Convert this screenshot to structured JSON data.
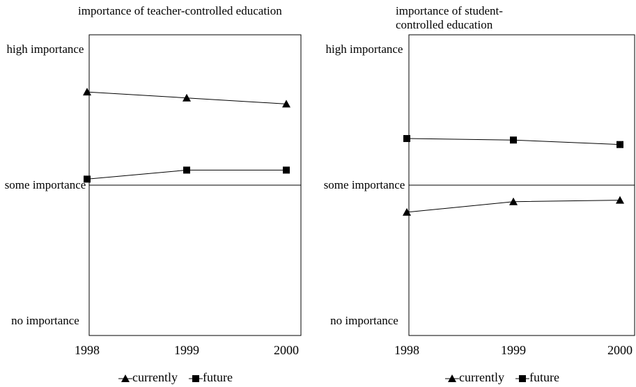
{
  "chart_data": [
    {
      "type": "line",
      "title": "importance of teacher-controlled education",
      "x": [
        "1998",
        "1999",
        "2000"
      ],
      "ylim": [
        0,
        2
      ],
      "yticks": [
        {
          "value": 0,
          "label": "no importance"
        },
        {
          "value": 1,
          "label": "some importance"
        },
        {
          "value": 2,
          "label": "high importance"
        }
      ],
      "hline": 1,
      "series": [
        {
          "name": "currently",
          "color": "#000000",
          "marker": "triangle",
          "values": [
            1.62,
            1.58,
            1.54
          ]
        },
        {
          "name": "future",
          "color": "#000000",
          "marker": "square",
          "values": [
            1.04,
            1.1,
            1.1
          ]
        }
      ]
    },
    {
      "type": "line",
      "title": "importance of student-controlled education",
      "x": [
        "1998",
        "1999",
        "2000"
      ],
      "ylim": [
        0,
        2
      ],
      "yticks": [
        {
          "value": 0,
          "label": "no importance"
        },
        {
          "value": 1,
          "label": "some importance"
        },
        {
          "value": 2,
          "label": "high importance"
        }
      ],
      "hline": 1,
      "series": [
        {
          "name": "currently",
          "color": "#000000",
          "marker": "triangle",
          "values": [
            0.82,
            0.89,
            0.9
          ]
        },
        {
          "name": "future",
          "color": "#000000",
          "marker": "square",
          "values": [
            1.31,
            1.3,
            1.27
          ]
        }
      ]
    }
  ]
}
